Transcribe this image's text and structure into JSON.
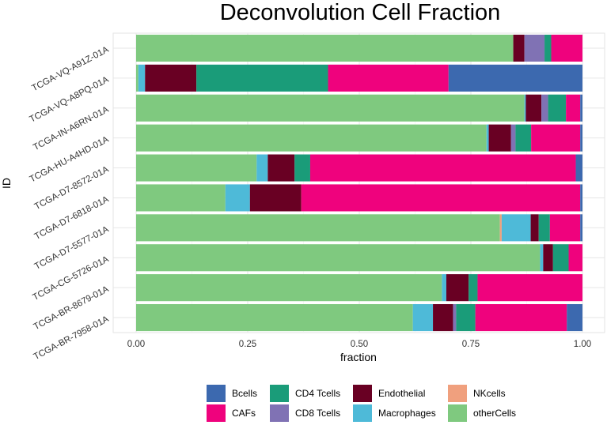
{
  "chart_data": {
    "type": "bar",
    "orientation": "horizontal",
    "stacked": true,
    "title": "Deconvolution Cell Fraction",
    "xlabel": "fraction",
    "ylabel": "ID",
    "xlim": [
      0,
      1
    ],
    "xticks": [
      "0.00",
      "0.25",
      "0.50",
      "0.75",
      "1.00"
    ],
    "grid": true,
    "legend_position": "bottom",
    "categories": [
      "TCGA-VQ-A91Z-01A",
      "TCGA-VQ-A8PQ-01A",
      "TCGA-IN-A6RN-01A",
      "TCGA-HU-A4HD-01A",
      "TCGA-D7-8572-01A",
      "TCGA-D7-6818-01A",
      "TCGA-D7-5577-01A",
      "TCGA-CG-5726-01A",
      "TCGA-BR-8679-01A",
      "TCGA-BR-7958-01A"
    ],
    "stack_order": [
      "otherCells",
      "NKcells",
      "Macrophages",
      "Endothelial",
      "CD8 Tcells",
      "CD4 Tcells",
      "CAFs",
      "Bcells"
    ],
    "series": [
      {
        "name": "otherCells",
        "color": "#7FC97F",
        "values": [
          0.845,
          0.005,
          0.87,
          0.785,
          0.27,
          0.2,
          0.815,
          0.905,
          0.685,
          0.62
        ]
      },
      {
        "name": "NKcells",
        "color": "#F0A07E",
        "values": [
          0.0,
          0.0,
          0.0,
          0.0,
          0.0,
          0.0,
          0.004,
          0.0,
          0.0,
          0.0
        ]
      },
      {
        "name": "Macrophages",
        "color": "#4EBAD8",
        "values": [
          0.0,
          0.015,
          0.003,
          0.005,
          0.025,
          0.055,
          0.065,
          0.007,
          0.01,
          0.045
        ]
      },
      {
        "name": "Endothelial",
        "color": "#690023",
        "values": [
          0.025,
          0.115,
          0.035,
          0.05,
          0.06,
          0.115,
          0.018,
          0.022,
          0.05,
          0.045
        ]
      },
      {
        "name": "CD8 Tcells",
        "color": "#8072B4",
        "values": [
          0.045,
          0.0,
          0.015,
          0.01,
          0.0,
          0.0,
          0.0,
          0.0,
          0.0,
          0.007
        ]
      },
      {
        "name": "CD4 Tcells",
        "color": "#1A9C79",
        "values": [
          0.015,
          0.295,
          0.04,
          0.035,
          0.035,
          0.0,
          0.025,
          0.035,
          0.02,
          0.043
        ]
      },
      {
        "name": "CAFs",
        "color": "#EF027D",
        "values": [
          0.07,
          0.27,
          0.032,
          0.11,
          0.595,
          0.625,
          0.068,
          0.031,
          0.235,
          0.205
        ]
      },
      {
        "name": "Bcells",
        "color": "#3C69AF",
        "values": [
          0.0,
          0.3,
          0.005,
          0.005,
          0.015,
          0.005,
          0.005,
          0.0,
          0.0,
          0.035
        ]
      }
    ],
    "legend_entries": [
      "Bcells",
      "CD4 Tcells",
      "Endothelial",
      "NKcells",
      "CAFs",
      "CD8 Tcells",
      "Macrophages",
      "otherCells"
    ]
  }
}
